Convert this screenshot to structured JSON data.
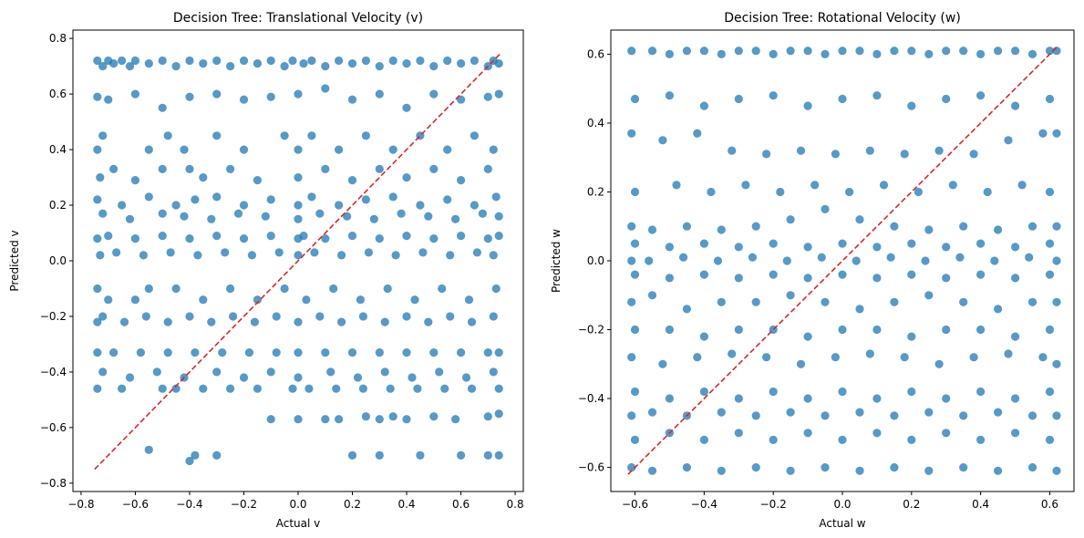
{
  "chart_data": [
    {
      "type": "scatter",
      "title": "Decision Tree: Translational Velocity (v)",
      "xlabel": "Actual v",
      "ylabel": "Predicted v",
      "xlim": [
        -0.83,
        0.83
      ],
      "ylim": [
        -0.83,
        0.83
      ],
      "xticks": [
        -0.8,
        -0.6,
        -0.4,
        -0.2,
        0.0,
        0.2,
        0.4,
        0.6,
        0.8
      ],
      "yticks": [
        -0.8,
        -0.6,
        -0.4,
        -0.2,
        0.0,
        0.2,
        0.4,
        0.6,
        0.8
      ],
      "xtick_labels": [
        "−0.8",
        "−0.6",
        "−0.4",
        "−0.2",
        "0.0",
        "0.2",
        "0.4",
        "0.6",
        "0.8"
      ],
      "ytick_labels": [
        "−0.8",
        "−0.6",
        "−0.4",
        "−0.2",
        "0.0",
        "0.2",
        "0.4",
        "0.6",
        "0.8"
      ],
      "point_color": "#1f77b4",
      "reference_line": {
        "from": [
          -0.75,
          -0.75
        ],
        "to": [
          0.75,
          0.75
        ],
        "color": "#d62728",
        "style": "dashed"
      },
      "series": [
        {
          "x": [
            -0.74,
            -0.72,
            -0.7,
            -0.68,
            -0.65,
            -0.62,
            -0.6,
            -0.55,
            -0.5,
            -0.45,
            -0.4,
            -0.35,
            -0.3,
            -0.25,
            -0.2,
            -0.15,
            -0.1,
            -0.05,
            -0.02,
            0.02,
            0.05,
            0.1,
            0.15,
            0.2,
            0.25,
            0.3,
            0.35,
            0.4,
            0.45,
            0.5,
            0.55,
            0.6,
            0.65,
            0.7,
            0.72,
            0.74,
            -0.74,
            -0.7,
            -0.6,
            -0.5,
            -0.4,
            -0.3,
            -0.2,
            -0.1,
            0.0,
            0.1,
            0.2,
            0.3,
            0.4,
            0.5,
            0.6,
            0.7,
            0.74,
            -0.74,
            -0.72,
            -0.55,
            -0.48,
            -0.42,
            -0.3,
            -0.2,
            -0.05,
            0.0,
            0.05,
            0.15,
            0.25,
            0.35,
            0.45,
            0.55,
            0.65,
            0.72,
            -0.73,
            -0.68,
            -0.6,
            -0.5,
            -0.4,
            -0.35,
            -0.25,
            -0.15,
            0.0,
            0.1,
            0.2,
            0.3,
            0.4,
            0.5,
            0.6,
            0.7,
            -0.74,
            -0.65,
            -0.55,
            -0.45,
            -0.38,
            -0.3,
            -0.2,
            -0.1,
            0.0,
            0.05,
            0.15,
            0.25,
            0.35,
            0.45,
            0.55,
            0.65,
            0.73,
            -0.72,
            -0.62,
            -0.5,
            -0.42,
            -0.32,
            -0.22,
            -0.12,
            0.0,
            0.08,
            0.18,
            0.28,
            0.38,
            0.48,
            0.58,
            0.68,
            0.74,
            -0.74,
            -0.7,
            -0.6,
            -0.5,
            -0.4,
            -0.3,
            -0.2,
            -0.1,
            0.0,
            0.02,
            0.1,
            0.2,
            0.3,
            0.4,
            0.5,
            0.6,
            0.7,
            0.74,
            -0.73,
            -0.67,
            -0.57,
            -0.47,
            -0.37,
            -0.27,
            -0.17,
            -0.07,
            0.0,
            0.06,
            0.16,
            0.26,
            0.36,
            0.46,
            0.56,
            0.66,
            0.72,
            -0.74,
            -0.7,
            -0.6,
            -0.55,
            -0.45,
            -0.35,
            -0.25,
            -0.15,
            -0.05,
            0.03,
            0.13,
            0.23,
            0.33,
            0.43,
            0.53,
            0.63,
            0.73,
            -0.74,
            -0.72,
            -0.64,
            -0.56,
            -0.48,
            -0.4,
            -0.32,
            -0.24,
            -0.16,
            -0.08,
            0.0,
            0.08,
            0.16,
            0.24,
            0.32,
            0.4,
            0.48,
            0.56,
            0.64,
            0.72,
            -0.74,
            -0.68,
            -0.58,
            -0.48,
            -0.38,
            -0.28,
            -0.18,
            -0.08,
            0.0,
            0.1,
            0.2,
            0.3,
            0.4,
            0.5,
            0.6,
            0.7,
            0.74,
            -0.72,
            -0.62,
            -0.52,
            -0.42,
            -0.3,
            -0.2,
            -0.1,
            0.0,
            0.12,
            0.22,
            0.32,
            0.42,
            0.52,
            0.62,
            0.72,
            -0.74,
            -0.65,
            -0.5,
            -0.45,
            -0.35,
            -0.25,
            -0.15,
            -0.02,
            0.04,
            0.14,
            0.24,
            0.34,
            0.44,
            0.54,
            0.64,
            0.74,
            -0.55,
            -0.4,
            -0.38,
            -0.3,
            -0.1,
            0.0,
            0.1,
            0.15,
            0.25,
            0.3,
            0.35,
            0.4,
            0.5,
            0.58,
            0.7,
            0.74,
            0.2,
            0.3,
            0.45,
            0.6,
            0.7,
            0.74
          ],
          "y": [
            0.72,
            0.7,
            0.72,
            0.71,
            0.72,
            0.7,
            0.72,
            0.71,
            0.72,
            0.7,
            0.72,
            0.71,
            0.72,
            0.7,
            0.72,
            0.71,
            0.72,
            0.7,
            0.72,
            0.71,
            0.72,
            0.7,
            0.72,
            0.71,
            0.72,
            0.7,
            0.72,
            0.71,
            0.72,
            0.7,
            0.72,
            0.71,
            0.72,
            0.7,
            0.72,
            0.71,
            0.59,
            0.58,
            0.6,
            0.55,
            0.59,
            0.6,
            0.58,
            0.59,
            0.6,
            0.62,
            0.58,
            0.6,
            0.55,
            0.6,
            0.58,
            0.59,
            0.6,
            0.4,
            0.45,
            0.4,
            0.45,
            0.4,
            0.45,
            0.4,
            0.45,
            0.4,
            0.45,
            0.4,
            0.45,
            0.4,
            0.45,
            0.4,
            0.45,
            0.4,
            0.3,
            0.33,
            0.29,
            0.33,
            0.33,
            0.3,
            0.33,
            0.29,
            0.3,
            0.33,
            0.29,
            0.33,
            0.3,
            0.33,
            0.29,
            0.33,
            0.22,
            0.2,
            0.23,
            0.2,
            0.22,
            0.23,
            0.2,
            0.22,
            0.2,
            0.23,
            0.2,
            0.22,
            0.23,
            0.2,
            0.22,
            0.2,
            0.23,
            0.17,
            0.15,
            0.17,
            0.16,
            0.15,
            0.17,
            0.16,
            0.15,
            0.17,
            0.16,
            0.15,
            0.17,
            0.16,
            0.15,
            0.17,
            0.16,
            0.08,
            0.09,
            0.08,
            0.09,
            0.08,
            0.09,
            0.08,
            0.09,
            0.08,
            0.09,
            0.08,
            0.09,
            0.08,
            0.09,
            0.08,
            0.09,
            0.08,
            0.09,
            0.02,
            0.03,
            0.02,
            0.03,
            0.02,
            0.03,
            0.02,
            0.03,
            0.02,
            0.03,
            0.02,
            0.03,
            0.02,
            0.03,
            0.02,
            0.03,
            0.02,
            -0.1,
            -0.14,
            -0.14,
            -0.1,
            -0.1,
            -0.14,
            -0.1,
            -0.14,
            -0.1,
            -0.14,
            -0.1,
            -0.14,
            -0.1,
            -0.14,
            -0.1,
            -0.14,
            -0.1,
            -0.22,
            -0.2,
            -0.22,
            -0.2,
            -0.22,
            -0.2,
            -0.22,
            -0.2,
            -0.22,
            -0.2,
            -0.22,
            -0.2,
            -0.22,
            -0.2,
            -0.22,
            -0.2,
            -0.22,
            -0.2,
            -0.22,
            -0.2,
            -0.33,
            -0.33,
            -0.33,
            -0.33,
            -0.33,
            -0.33,
            -0.33,
            -0.33,
            -0.33,
            -0.33,
            -0.33,
            -0.33,
            -0.33,
            -0.33,
            -0.33,
            -0.33,
            -0.33,
            -0.4,
            -0.42,
            -0.4,
            -0.42,
            -0.4,
            -0.42,
            -0.4,
            -0.42,
            -0.4,
            -0.42,
            -0.4,
            -0.42,
            -0.4,
            -0.42,
            -0.4,
            -0.46,
            -0.46,
            -0.46,
            -0.46,
            -0.46,
            -0.46,
            -0.46,
            -0.46,
            -0.46,
            -0.46,
            -0.46,
            -0.46,
            -0.46,
            -0.46,
            -0.46,
            -0.46,
            -0.68,
            -0.72,
            -0.7,
            -0.7,
            -0.57,
            -0.57,
            -0.57,
            -0.57,
            -0.56,
            -0.57,
            -0.56,
            -0.57,
            -0.56,
            -0.57,
            -0.56,
            -0.55,
            -0.7,
            -0.7,
            -0.7,
            -0.7,
            -0.7,
            -0.7
          ]
        }
      ]
    },
    {
      "type": "scatter",
      "title": "Decision Tree: Rotational Velocity (w)",
      "xlabel": "Actual w",
      "ylabel": "Predicted w",
      "xlim": [
        -0.67,
        0.67
      ],
      "ylim": [
        -0.67,
        0.67
      ],
      "xticks": [
        -0.6,
        -0.4,
        -0.2,
        0.0,
        0.2,
        0.4,
        0.6
      ],
      "yticks": [
        -0.6,
        -0.4,
        -0.2,
        0.0,
        0.2,
        0.4,
        0.6
      ],
      "xtick_labels": [
        "−0.6",
        "−0.4",
        "−0.2",
        "0.0",
        "0.2",
        "0.4",
        "0.6"
      ],
      "ytick_labels": [
        "−0.6",
        "−0.4",
        "−0.2",
        "0.0",
        "0.2",
        "0.4",
        "0.6"
      ],
      "point_color": "#1f77b4",
      "reference_line": {
        "from": [
          -0.62,
          -0.62
        ],
        "to": [
          0.62,
          0.62
        ],
        "color": "#d62728",
        "style": "dashed"
      },
      "series": [
        {
          "x": [
            -0.61,
            -0.55,
            -0.5,
            -0.45,
            -0.4,
            -0.35,
            -0.3,
            -0.25,
            -0.2,
            -0.15,
            -0.1,
            -0.05,
            0.0,
            0.05,
            0.1,
            0.15,
            0.2,
            0.25,
            0.3,
            0.35,
            0.4,
            0.45,
            0.5,
            0.55,
            0.6,
            0.62,
            -0.6,
            -0.5,
            -0.4,
            -0.3,
            -0.2,
            -0.1,
            0.0,
            0.1,
            0.2,
            0.3,
            0.4,
            0.5,
            0.6,
            -0.61,
            -0.52,
            -0.42,
            -0.32,
            -0.22,
            -0.12,
            -0.02,
            0.08,
            0.18,
            0.28,
            0.38,
            0.48,
            0.58,
            0.62,
            -0.6,
            -0.48,
            -0.38,
            -0.28,
            -0.18,
            -0.08,
            0.02,
            0.12,
            0.22,
            0.32,
            0.42,
            0.52,
            0.6,
            -0.61,
            -0.55,
            -0.45,
            -0.35,
            -0.25,
            -0.15,
            -0.05,
            0.05,
            0.15,
            0.25,
            0.35,
            0.45,
            0.55,
            0.62,
            -0.6,
            -0.5,
            -0.4,
            -0.3,
            -0.2,
            -0.1,
            0.0,
            0.1,
            0.2,
            0.3,
            0.4,
            0.5,
            0.6,
            -0.61,
            -0.56,
            -0.46,
            -0.36,
            -0.26,
            -0.16,
            -0.06,
            0.04,
            0.14,
            0.24,
            0.34,
            0.44,
            0.54,
            0.62,
            -0.6,
            -0.5,
            -0.4,
            -0.3,
            -0.2,
            -0.1,
            0.0,
            0.1,
            0.2,
            0.3,
            0.4,
            0.5,
            0.6,
            -0.61,
            -0.55,
            -0.45,
            -0.35,
            -0.25,
            -0.15,
            -0.05,
            0.05,
            0.15,
            0.25,
            0.35,
            0.45,
            0.55,
            0.62,
            -0.6,
            -0.5,
            -0.4,
            -0.3,
            -0.2,
            -0.1,
            0.0,
            0.1,
            0.2,
            0.3,
            0.4,
            0.5,
            0.6,
            -0.61,
            -0.52,
            -0.42,
            -0.32,
            -0.22,
            -0.12,
            -0.02,
            0.08,
            0.18,
            0.28,
            0.38,
            0.48,
            0.58,
            0.62,
            -0.6,
            -0.5,
            -0.4,
            -0.3,
            -0.2,
            -0.1,
            0.0,
            0.1,
            0.2,
            0.3,
            0.4,
            0.5,
            0.6,
            -0.61,
            -0.55,
            -0.45,
            -0.35,
            -0.25,
            -0.15,
            -0.05,
            0.05,
            0.15,
            0.25,
            0.35,
            0.45,
            0.55,
            0.62,
            -0.6,
            -0.5,
            -0.4,
            -0.3,
            -0.2,
            -0.1,
            0.0,
            0.1,
            0.2,
            0.3,
            0.4,
            0.5,
            0.6,
            -0.61,
            -0.55,
            -0.45,
            -0.35,
            -0.25,
            -0.15,
            -0.05,
            0.05,
            0.15,
            0.25,
            0.35,
            0.45,
            0.55,
            0.62
          ],
          "y": [
            0.61,
            0.61,
            0.6,
            0.61,
            0.61,
            0.6,
            0.61,
            0.61,
            0.6,
            0.61,
            0.61,
            0.6,
            0.61,
            0.61,
            0.6,
            0.61,
            0.61,
            0.6,
            0.61,
            0.61,
            0.6,
            0.61,
            0.61,
            0.6,
            0.61,
            0.61,
            0.47,
            0.48,
            0.45,
            0.47,
            0.48,
            0.45,
            0.47,
            0.48,
            0.45,
            0.47,
            0.48,
            0.45,
            0.47,
            0.37,
            0.35,
            0.37,
            0.32,
            0.31,
            0.32,
            0.31,
            0.32,
            0.31,
            0.32,
            0.31,
            0.35,
            0.37,
            0.37,
            0.2,
            0.22,
            0.2,
            0.22,
            0.2,
            0.22,
            0.2,
            0.22,
            0.2,
            0.22,
            0.2,
            0.22,
            0.2,
            0.1,
            0.09,
            0.1,
            0.09,
            0.1,
            0.12,
            0.15,
            0.12,
            0.1,
            0.09,
            0.1,
            0.09,
            0.1,
            0.1,
            0.05,
            0.04,
            0.05,
            0.04,
            0.05,
            0.04,
            0.05,
            0.04,
            0.05,
            0.04,
            0.05,
            0.04,
            0.05,
            0.0,
            0.0,
            0.01,
            0.0,
            0.01,
            0.0,
            0.01,
            0.0,
            0.01,
            0.0,
            0.01,
            0.0,
            0.01,
            0.0,
            -0.04,
            -0.05,
            -0.04,
            -0.05,
            -0.04,
            -0.05,
            -0.04,
            -0.05,
            -0.04,
            -0.05,
            -0.04,
            -0.05,
            -0.04,
            -0.12,
            -0.1,
            -0.14,
            -0.12,
            -0.12,
            -0.1,
            -0.12,
            -0.14,
            -0.12,
            -0.1,
            -0.12,
            -0.14,
            -0.12,
            -0.12,
            -0.2,
            -0.2,
            -0.22,
            -0.2,
            -0.2,
            -0.22,
            -0.2,
            -0.2,
            -0.22,
            -0.2,
            -0.2,
            -0.22,
            -0.2,
            -0.28,
            -0.3,
            -0.28,
            -0.27,
            -0.28,
            -0.3,
            -0.28,
            -0.27,
            -0.28,
            -0.3,
            -0.28,
            -0.27,
            -0.28,
            -0.3,
            -0.38,
            -0.4,
            -0.38,
            -0.4,
            -0.38,
            -0.4,
            -0.38,
            -0.4,
            -0.38,
            -0.4,
            -0.38,
            -0.4,
            -0.38,
            -0.45,
            -0.44,
            -0.45,
            -0.44,
            -0.45,
            -0.44,
            -0.45,
            -0.44,
            -0.45,
            -0.44,
            -0.45,
            -0.44,
            -0.45,
            -0.45,
            -0.52,
            -0.5,
            -0.52,
            -0.5,
            -0.52,
            -0.5,
            -0.52,
            -0.5,
            -0.52,
            -0.5,
            -0.52,
            -0.5,
            -0.52,
            -0.6,
            -0.61,
            -0.6,
            -0.61,
            -0.6,
            -0.61,
            -0.6,
            -0.61,
            -0.6,
            -0.61,
            -0.6,
            -0.61,
            -0.6,
            -0.61
          ]
        }
      ]
    }
  ]
}
